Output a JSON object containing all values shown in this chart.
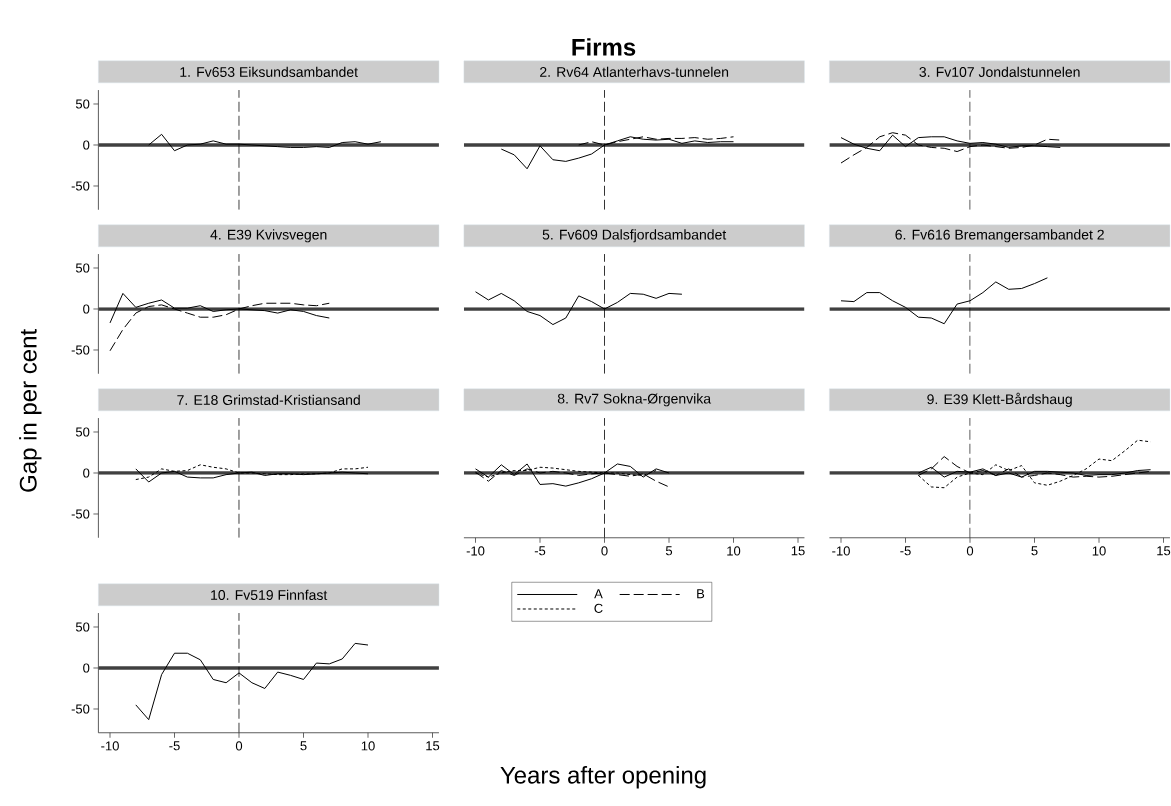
{
  "chart_data": [
    {
      "type": "line",
      "title": "1. Fv653 Eiksundsambandet",
      "xlim": [
        -10.9,
        15.5
      ],
      "ylim": [
        -79,
        67
      ],
      "yticks": [
        -50,
        0,
        50
      ],
      "tick_labels": "y",
      "ref_lines": [
        {
          "axis": "y",
          "value": 0,
          "color": "#404040"
        },
        {
          "axis": "x",
          "value": 0,
          "color": "#000000",
          "line_style": "dashed"
        }
      ],
      "series": [
        {
          "color": "#000000",
          "line_style": "solid",
          "x": [
            -7,
            -6,
            -5,
            -4,
            -3,
            -2,
            -1,
            0,
            1,
            2,
            3,
            4,
            5,
            6,
            7,
            8,
            9,
            10,
            11
          ],
          "values": [
            0,
            13,
            -7,
            0,
            1,
            5,
            1,
            1,
            0,
            -1,
            -2,
            -3,
            -3,
            -2,
            -3,
            3,
            4,
            1,
            4
          ]
        }
      ]
    },
    {
      "type": "line",
      "title": "2. Rv64 Atlanterhavs-tunnelen",
      "xlim": [
        -10.9,
        15.5
      ],
      "ylim": [
        -79,
        67
      ],
      "tick_labels": false,
      "annotations": [
        "Firms"
      ],
      "ref_lines": [
        {
          "axis": "y",
          "value": 0,
          "color": "#404040"
        },
        {
          "axis": "x",
          "value": 0,
          "color": "#000000",
          "line_style": "dashed"
        }
      ],
      "series": [
        {
          "color": "#000000",
          "line_style": "solid",
          "x": [
            -8,
            -7,
            -6,
            -5,
            -4,
            -3,
            -2,
            -1,
            0,
            1,
            2,
            3,
            4,
            5,
            6,
            7,
            8,
            9,
            10
          ],
          "values": [
            -5,
            -12,
            -29,
            -1,
            -18,
            -20,
            -16,
            -11,
            0,
            5,
            10,
            7,
            6,
            7,
            2,
            5,
            3,
            4,
            4
          ]
        },
        {
          "color": "#000000",
          "line_style": "dashed",
          "x": [
            -2,
            -1,
            0,
            1,
            2,
            3,
            4,
            5,
            6,
            7,
            8,
            9,
            10
          ],
          "values": [
            0,
            4,
            0,
            4,
            7,
            10,
            7,
            8,
            8,
            9,
            7,
            8,
            10
          ]
        }
      ]
    },
    {
      "type": "line",
      "title": "3. Fv107 Jondalstunnelen",
      "xlim": [
        -10.9,
        15.5
      ],
      "ylim": [
        -79,
        67
      ],
      "tick_labels": false,
      "ref_lines": [
        {
          "axis": "y",
          "value": 0,
          "color": "#404040"
        },
        {
          "axis": "x",
          "value": 0,
          "color": "#000000",
          "line_style": "dashed"
        }
      ],
      "series": [
        {
          "color": "#000000",
          "line_style": "solid",
          "x": [
            -10,
            -9,
            -8,
            -7,
            -6,
            -5,
            -4,
            -3,
            -2,
            -1,
            0,
            1,
            2,
            3,
            4,
            5,
            6,
            7
          ],
          "values": [
            9,
            1,
            -4,
            -7,
            12,
            -2,
            9,
            10,
            10,
            5,
            2,
            3,
            1,
            -3,
            -1,
            -1,
            -2,
            -3
          ]
        },
        {
          "color": "#000000",
          "line_style": "dashed",
          "x": [
            -10,
            -9,
            -8,
            -7,
            -6,
            -5,
            -4,
            -3,
            -2,
            -1,
            0,
            1,
            2,
            3,
            4,
            5,
            6,
            7
          ],
          "values": [
            -22,
            -12,
            -3,
            10,
            15,
            12,
            0,
            -3,
            -4,
            -8,
            -2,
            0,
            -2,
            -4,
            -3,
            0,
            7,
            6
          ]
        }
      ]
    },
    {
      "type": "line",
      "title": "4. E39 Kvivsvegen",
      "ylabel": "Gap in per cent",
      "xlim": [
        -10.9,
        15.5
      ],
      "ylim": [
        -79,
        67
      ],
      "yticks": [
        -50,
        0,
        50
      ],
      "tick_labels": "y",
      "ref_lines": [
        {
          "axis": "y",
          "value": 0,
          "color": "#404040"
        },
        {
          "axis": "x",
          "value": 0,
          "color": "#000000",
          "line_style": "dashed"
        }
      ],
      "series": [
        {
          "color": "#000000",
          "line_style": "solid",
          "x": [
            -10,
            -9,
            -8,
            -7,
            -6,
            -5,
            -4,
            -3,
            -2,
            -1,
            0,
            1,
            2,
            3,
            4,
            5,
            6,
            7
          ],
          "values": [
            -17,
            19,
            2,
            7,
            11,
            1,
            1,
            4,
            -3,
            -1,
            0,
            -1,
            -2,
            -5,
            -1,
            -3,
            -8,
            -11
          ]
        },
        {
          "color": "#000000",
          "line_style": "dashed",
          "x": [
            -10,
            -9,
            -8,
            -7,
            -6,
            -5,
            -4,
            -3,
            -2,
            -1,
            0,
            1,
            2,
            3,
            4,
            5,
            6,
            7
          ],
          "values": [
            -51,
            -25,
            -5,
            3,
            5,
            0,
            -5,
            -10,
            -10,
            -7,
            0,
            4,
            7,
            7,
            7,
            5,
            4,
            7
          ]
        }
      ]
    },
    {
      "type": "line",
      "title": "5. Fv609 Dalsfjordsambandet",
      "xlim": [
        -10.9,
        15.5
      ],
      "ylim": [
        -79,
        67
      ],
      "tick_labels": false,
      "ref_lines": [
        {
          "axis": "y",
          "value": 0,
          "color": "#404040"
        },
        {
          "axis": "x",
          "value": 0,
          "color": "#000000",
          "line_style": "dashed"
        }
      ],
      "series": [
        {
          "color": "#000000",
          "line_style": "solid",
          "x": [
            -10,
            -9,
            -8,
            -7,
            -6,
            -5,
            -4,
            -3,
            -2,
            -1,
            0,
            1,
            2,
            3,
            4,
            5,
            6
          ],
          "values": [
            21,
            11,
            19,
            10,
            -3,
            -8,
            -19,
            -11,
            16,
            9,
            0,
            8,
            19,
            18,
            13,
            19,
            18
          ]
        }
      ]
    },
    {
      "type": "line",
      "title": "6. Fv616 Bremangersambandet 2",
      "xlim": [
        -10.9,
        15.5
      ],
      "ylim": [
        -79,
        67
      ],
      "tick_labels": false,
      "ref_lines": [
        {
          "axis": "y",
          "value": 0,
          "color": "#404040"
        },
        {
          "axis": "x",
          "value": 0,
          "color": "#000000",
          "line_style": "dashed"
        }
      ],
      "series": [
        {
          "color": "#000000",
          "line_style": "solid",
          "x": [
            -10,
            -9,
            -8,
            -7,
            -6,
            -5,
            -4,
            -3,
            -2,
            -1,
            0,
            1,
            2,
            3,
            4,
            5,
            6
          ],
          "values": [
            10,
            9,
            20,
            20,
            10,
            2,
            -10,
            -11,
            -18,
            6,
            10,
            20,
            33,
            24,
            25,
            31,
            38
          ]
        }
      ]
    },
    {
      "type": "line",
      "title": "7. E18 Grimstad-Kristiansand",
      "xlim": [
        -10.9,
        15.5
      ],
      "ylim": [
        -79,
        67
      ],
      "yticks": [
        -50,
        0,
        50
      ],
      "tick_labels": "y",
      "ref_lines": [
        {
          "axis": "y",
          "value": 0,
          "color": "#404040"
        },
        {
          "axis": "x",
          "value": 0,
          "color": "#000000",
          "line_style": "dashed"
        }
      ],
      "series": [
        {
          "color": "#000000",
          "line_style": "solid",
          "x": [
            -8,
            -7,
            -6,
            -5,
            -4,
            -3,
            -2,
            -1,
            0,
            1,
            2,
            3,
            4,
            5,
            6,
            7,
            8,
            9,
            10
          ],
          "values": [
            5,
            -11,
            0,
            2,
            -5,
            -6,
            -6,
            -2,
            0,
            1,
            -3,
            -1,
            -1,
            -2,
            -1,
            0,
            1,
            0,
            -1
          ]
        },
        {
          "color": "#000000",
          "line_style": "dotted",
          "x": [
            -8,
            -7,
            -6,
            -5,
            -4,
            -3,
            -2,
            -1,
            0,
            1,
            2,
            3,
            4,
            5,
            6,
            7,
            8,
            9,
            10
          ],
          "values": [
            -8,
            -5,
            5,
            2,
            3,
            10,
            7,
            5,
            0,
            0,
            -1,
            -2,
            -2,
            -1,
            -1,
            0,
            5,
            5,
            7
          ]
        }
      ]
    },
    {
      "type": "line",
      "title": "8. Rv7 Sokna-Ørgenvika",
      "xlabel": "Years after opening",
      "xlim": [
        -10.9,
        15.5
      ],
      "ylim": [
        -79,
        67
      ],
      "xticks": [
        -10,
        -5,
        0,
        5,
        10,
        15
      ],
      "tick_labels": "x",
      "legend": "bottom",
      "ref_lines": [
        {
          "axis": "y",
          "value": 0,
          "color": "#404040"
        },
        {
          "axis": "x",
          "value": 0,
          "color": "#000000",
          "line_style": "dashed"
        }
      ],
      "series": [
        {
          "name": "A",
          "color": "#000000",
          "line_style": "solid",
          "x": [
            -10,
            -9,
            -8,
            -7,
            -6,
            -5,
            -4,
            -3,
            -2,
            -1,
            0,
            1,
            2,
            3,
            4,
            5
          ],
          "values": [
            5,
            -5,
            10,
            -2,
            11,
            -14,
            -13,
            -16,
            -12,
            -7,
            0,
            11,
            8,
            -5,
            5,
            0
          ]
        },
        {
          "name": "B",
          "color": "#000000",
          "line_style": "dashed",
          "x": [
            -10,
            -9,
            -8,
            -7,
            -6,
            -5,
            -4,
            -3,
            -2,
            -1,
            0,
            1,
            2,
            3,
            4,
            5
          ],
          "values": [
            1,
            -10,
            3,
            -3,
            5,
            0,
            2,
            0,
            -3,
            -1,
            0,
            -2,
            -4,
            -1,
            -10,
            -17
          ]
        },
        {
          "name": "C",
          "color": "#000000",
          "line_style": "dotted",
          "x": [
            -10,
            -9,
            -8,
            -7,
            -6,
            -5,
            -4,
            -3,
            -2,
            -1,
            0,
            1,
            2,
            3,
            4
          ],
          "values": [
            0,
            -5,
            0,
            3,
            3,
            7,
            6,
            4,
            2,
            1,
            0,
            0,
            -2,
            -3,
            3
          ]
        }
      ]
    },
    {
      "type": "line",
      "title": "9. E39 Klett-Bårdshaug",
      "xlim": [
        -10.9,
        15.5
      ],
      "ylim": [
        -79,
        67
      ],
      "xticks": [
        -10,
        -5,
        0,
        5,
        10,
        15
      ],
      "tick_labels": "x",
      "ref_lines": [
        {
          "axis": "y",
          "value": 0,
          "color": "#404040"
        },
        {
          "axis": "x",
          "value": 0,
          "color": "#000000",
          "line_style": "dashed"
        }
      ],
      "series": [
        {
          "color": "#000000",
          "line_style": "solid",
          "x": [
            -4,
            -3,
            -2,
            -1,
            0,
            1,
            2,
            3,
            4,
            5,
            6,
            7,
            8,
            9,
            10,
            11,
            12,
            13,
            14
          ],
          "values": [
            0,
            7,
            -5,
            2,
            1,
            5,
            -3,
            0,
            -5,
            2,
            2,
            1,
            0,
            -3,
            -2,
            -2,
            0,
            3,
            4
          ]
        },
        {
          "color": "#000000",
          "line_style": "dashed",
          "x": [
            -4,
            -3,
            -2,
            -1,
            0,
            1,
            2,
            3,
            4,
            5,
            6,
            7,
            8,
            9,
            10,
            11,
            12,
            13,
            14
          ],
          "values": [
            -3,
            5,
            20,
            8,
            0,
            3,
            -3,
            5,
            -5,
            -3,
            0,
            -2,
            -5,
            -4,
            -5,
            -4,
            -2,
            0,
            2
          ]
        },
        {
          "color": "#000000",
          "line_style": "dotted",
          "x": [
            -4,
            -3,
            -2,
            -1,
            0,
            1,
            2,
            3,
            4,
            5,
            6,
            7,
            8,
            9,
            10,
            11,
            12,
            13,
            14
          ],
          "values": [
            -3,
            -17,
            -18,
            -5,
            0,
            -2,
            10,
            3,
            9,
            -12,
            -15,
            -10,
            -3,
            5,
            17,
            15,
            27,
            40,
            38
          ]
        }
      ]
    },
    {
      "type": "line",
      "title": "10. Fv519 Finnfast",
      "xlim": [
        -10.9,
        15.5
      ],
      "ylim": [
        -79,
        67
      ],
      "xticks": [
        -10,
        -5,
        0,
        5,
        10,
        15
      ],
      "yticks": [
        -50,
        0,
        50
      ],
      "ref_lines": [
        {
          "axis": "y",
          "value": 0,
          "color": "#404040"
        },
        {
          "axis": "x",
          "value": 0,
          "color": "#000000",
          "line_style": "dashed"
        }
      ],
      "series": [
        {
          "color": "#000000",
          "line_style": "solid",
          "x": [
            -8,
            -7,
            -6,
            -5,
            -4,
            -3,
            -2,
            -1,
            0,
            1,
            2,
            3,
            4,
            5,
            6,
            7,
            8,
            9,
            10
          ],
          "values": [
            -45,
            -63,
            -8,
            18,
            18,
            10,
            -14,
            -18,
            -6,
            -18,
            -25,
            -5,
            -9,
            -14,
            6,
            5,
            11,
            30,
            28
          ]
        }
      ]
    }
  ]
}
